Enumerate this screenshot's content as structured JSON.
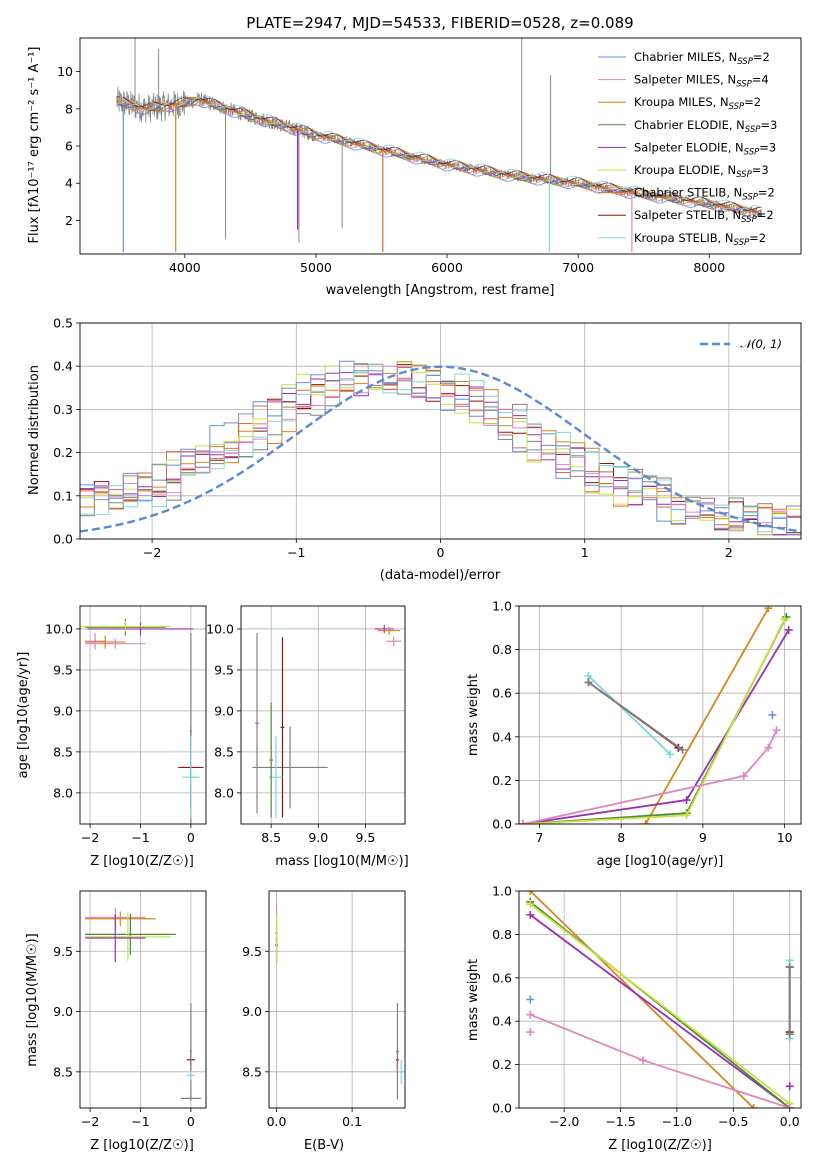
{
  "colors": {
    "data": "#808080",
    "chabrier_miles": "#6d8ed8",
    "salpeter_miles": "#e085c0",
    "kroupa_miles": "#d4861c",
    "chabrier_elodie": "#4c8a3a",
    "salpeter_elodie": "#9a2fb4",
    "kroupa_elodie": "#c8e040",
    "chabrier_stelib": "#e06840",
    "salpeter_stelib": "#8c1414",
    "kroupa_stelib": "#7ed8e0",
    "normal_curve": "#5a8ad6"
  },
  "chart_data": [
    {
      "id": "spectrum",
      "type": "line",
      "title": "PLATE=2947, MJD=54533, FIBERID=0528, z=0.089",
      "xlabel": "wavelength [Angstrom, rest frame]",
      "ylabel": "Flux [fλ10⁻¹⁷ erg cm⁻² s⁻¹ A⁻¹]",
      "xlim": [
        3200,
        8700
      ],
      "ylim": [
        0.2,
        11.8
      ],
      "xticks": [
        4000,
        5000,
        6000,
        7000,
        8000
      ],
      "yticks": [
        2,
        4,
        6,
        8,
        10
      ],
      "legend_position": "top-right",
      "legend": [
        {
          "label": "Chabrier MILES, N",
          "sub": "SSP",
          "eq": "=2",
          "color": "#6d8ed8"
        },
        {
          "label": "Salpeter MILES, N",
          "sub": "SSP",
          "eq": "=4",
          "color": "#e085c0"
        },
        {
          "label": "Kroupa MILES, N",
          "sub": "SSP",
          "eq": "=2",
          "color": "#d4861c"
        },
        {
          "label": "Chabrier ELODIE, N",
          "sub": "SSP",
          "eq": "=3",
          "color": "#4c8a3a"
        },
        {
          "label": "Salpeter ELODIE, N",
          "sub": "SSP",
          "eq": "=3",
          "color": "#9a2fb4"
        },
        {
          "label": "Kroupa ELODIE, N",
          "sub": "SSP",
          "eq": "=3",
          "color": "#c8e040"
        },
        {
          "label": "Chabrier STELIB, N",
          "sub": "SSP",
          "eq": "=2",
          "color": "#e06840"
        },
        {
          "label": "Salpeter STELIB, N",
          "sub": "SSP",
          "eq": "=2",
          "color": "#8c1414"
        },
        {
          "label": "Kroupa STELIB, N",
          "sub": "SSP",
          "eq": "=2",
          "color": "#7ed8e0"
        }
      ],
      "continuum": [
        [
          3480,
          8.4
        ],
        [
          3700,
          8.0
        ],
        [
          4000,
          8.3
        ],
        [
          4100,
          8.5
        ],
        [
          4500,
          7.6
        ],
        [
          5000,
          6.6
        ],
        [
          5500,
          5.8
        ],
        [
          6000,
          5.0
        ],
        [
          6500,
          4.4
        ],
        [
          7000,
          4.0
        ],
        [
          7500,
          3.4
        ],
        [
          8000,
          2.9
        ],
        [
          8400,
          2.4
        ]
      ],
      "data_spikes": [
        [
          3620,
          11.8
        ],
        [
          3800,
          11.2
        ],
        [
          4310,
          1.0
        ],
        [
          4870,
          0.8
        ],
        [
          5200,
          1.6
        ],
        [
          6570,
          11.8
        ],
        [
          6790,
          9.8
        ]
      ],
      "model_dips": [
        [
          3530,
          0.3
        ],
        [
          3930,
          0.3
        ],
        [
          4860,
          1.5
        ],
        [
          5510,
          0.3
        ],
        [
          6780,
          0.3
        ],
        [
          7410,
          0.3
        ]
      ]
    },
    {
      "id": "residuals",
      "type": "line",
      "xlabel": "(data-model)/error",
      "ylabel": "Normed distribution",
      "xlim": [
        -2.5,
        2.5
      ],
      "ylim": [
        0.0,
        0.5
      ],
      "xticks": [
        -2,
        -1,
        0,
        1,
        2
      ],
      "yticks": [
        0.0,
        0.1,
        0.2,
        0.3,
        0.4,
        0.5
      ],
      "legend_position": "top-right",
      "legend": [
        {
          "label": "𝒩(0, 1)",
          "color": "#5a8ad6",
          "style": "dashed"
        }
      ],
      "normal_mu": 0,
      "normal_sigma": 1,
      "hist_bin_width": 0.1,
      "hist_envelope": [
        [
          -2.5,
          0.09
        ],
        [
          -2.0,
          0.12
        ],
        [
          -1.5,
          0.22
        ],
        [
          -1.0,
          0.33
        ],
        [
          -0.5,
          0.38
        ],
        [
          0.0,
          0.35
        ],
        [
          0.5,
          0.26
        ],
        [
          1.0,
          0.16
        ],
        [
          1.5,
          0.09
        ],
        [
          2.0,
          0.05
        ],
        [
          2.5,
          0.03
        ]
      ]
    },
    {
      "id": "age_vs_Z",
      "type": "scatter",
      "xlabel": "Z [log10(Z/Z☉)]",
      "ylabel": "age [log10(age/yr)]",
      "xlim": [
        -2.2,
        0.3
      ],
      "ylim": [
        7.62,
        10.28
      ],
      "xticks": [
        -2,
        -1,
        0
      ],
      "yticks": [
        8.0,
        8.5,
        9.0,
        9.5,
        10.0
      ],
      "points": [
        {
          "x": -1.3,
          "y": 10.02,
          "xerr": 0.8,
          "yerr": 0.1,
          "color": "#4c8a3a"
        },
        {
          "x": -1.0,
          "y": 10.0,
          "xerr": 1.05,
          "yerr": 0.08,
          "color": "#9a2fb4"
        },
        {
          "x": -1.3,
          "y": 10.03,
          "xerr": 0.9,
          "yerr": 0.07,
          "color": "#c8e040"
        },
        {
          "x": -1.9,
          "y": 9.85,
          "xerr": 0.2,
          "yerr": 0.1,
          "color": "#e085c0"
        },
        {
          "x": -1.5,
          "y": 9.82,
          "xerr": 0.6,
          "yerr": 0.06,
          "color": "#e085c0"
        },
        {
          "x": -1.7,
          "y": 9.84,
          "xerr": 0.4,
          "yerr": 0.08,
          "color": "#d4861c"
        },
        {
          "x": 0.0,
          "y": 8.31,
          "xerr": 0.25,
          "yerr": 0.5,
          "color": "#8c1414"
        },
        {
          "x": 0.0,
          "y": 8.75,
          "xerr": 0.02,
          "yerr": 1.2,
          "color": "#808080"
        },
        {
          "x": 0.0,
          "y": 8.19,
          "xerr": 0.17,
          "yerr": 0.5,
          "color": "#7ed8e0"
        }
      ]
    },
    {
      "id": "age_vs_mass",
      "type": "scatter",
      "xlabel": "mass [log10(M/M☉)]",
      "ylabel": "",
      "xlim": [
        8.18,
        9.92
      ],
      "ylim": [
        7.62,
        10.28
      ],
      "xticks": [
        8.5,
        9.0,
        9.5
      ],
      "yticks": [
        8.0,
        8.5,
        9.0,
        9.5,
        10.0
      ],
      "points": [
        {
          "x": 9.7,
          "y": 10.0,
          "xerr": 0.1,
          "yerr": 0.05,
          "color": "#9a2fb4"
        },
        {
          "x": 9.8,
          "y": 9.85,
          "xerr": 0.08,
          "yerr": 0.06,
          "color": "#e085c0"
        },
        {
          "x": 9.75,
          "y": 9.98,
          "xerr": 0.12,
          "yerr": 0.05,
          "color": "#d4861c"
        },
        {
          "x": 8.7,
          "y": 8.31,
          "xerr": 0.4,
          "yerr": 0.5,
          "color": "#808080"
        },
        {
          "x": 8.35,
          "y": 8.85,
          "xerr": 0.02,
          "yerr": 1.1,
          "color": "#808080"
        },
        {
          "x": 8.62,
          "y": 8.8,
          "xerr": 0.02,
          "yerr": 1.1,
          "color": "#8c1414"
        },
        {
          "x": 8.55,
          "y": 8.19,
          "xerr": 0.07,
          "yerr": 0.5,
          "color": "#7ed8e0"
        },
        {
          "x": 8.5,
          "y": 8.4,
          "xerr": 0.02,
          "yerr": 0.7,
          "color": "#4c8a3a"
        }
      ]
    },
    {
      "id": "mass_weight_vs_age",
      "type": "line",
      "xlabel": "age [log10(age/yr)]",
      "ylabel": "mass weight",
      "xlim": [
        6.75,
        10.2
      ],
      "ylim": [
        0.0,
        1.0
      ],
      "xticks": [
        7,
        8,
        9,
        10
      ],
      "yticks": [
        0.0,
        0.2,
        0.4,
        0.6,
        0.8,
        1.0
      ],
      "series": [
        {
          "color": "#d4861c",
          "x": [
            8.3,
            9.8
          ],
          "y": [
            0.0,
            0.99
          ]
        },
        {
          "color": "#9a2fb4",
          "x": [
            6.8,
            8.8,
            10.05
          ],
          "y": [
            0.0,
            0.11,
            0.89
          ]
        },
        {
          "color": "#4c8a3a",
          "x": [
            6.8,
            8.8,
            10.02
          ],
          "y": [
            0.0,
            0.05,
            0.95
          ]
        },
        {
          "color": "#c8e040",
          "x": [
            6.8,
            8.8,
            10.0
          ],
          "y": [
            0.0,
            0.04,
            0.94
          ]
        },
        {
          "color": "#e085c0",
          "x": [
            6.8,
            9.5,
            9.8,
            9.9
          ],
          "y": [
            0.0,
            0.22,
            0.35,
            0.43
          ]
        },
        {
          "color": "#7ed8e0",
          "x": [
            7.6,
            8.6
          ],
          "y": [
            0.68,
            0.32
          ]
        },
        {
          "color": "#8c1414",
          "x": [
            7.6,
            8.7
          ],
          "y": [
            0.65,
            0.35
          ]
        },
        {
          "color": "#808080",
          "x": [
            7.6,
            8.75
          ],
          "y": [
            0.65,
            0.34
          ]
        },
        {
          "color": "#6d8ed8",
          "x": [
            9.85
          ],
          "y": [
            0.5
          ]
        }
      ]
    },
    {
      "id": "mass_vs_Z",
      "type": "scatter",
      "xlabel": "Z [log10(Z/Z☉)]",
      "ylabel": "mass [log10(M/M☉)]",
      "xlim": [
        -2.2,
        0.3
      ],
      "ylim": [
        8.2,
        10.0
      ],
      "xticks": [
        -2,
        -1,
        0
      ],
      "yticks": [
        8.5,
        9.0,
        9.5
      ],
      "points": [
        {
          "x": -1.5,
          "y": 9.78,
          "xerr": 0.6,
          "yerr": 0.08,
          "color": "#e085c0"
        },
        {
          "x": -1.4,
          "y": 9.77,
          "xerr": 0.7,
          "yerr": 0.06,
          "color": "#d4861c"
        },
        {
          "x": -1.2,
          "y": 9.64,
          "xerr": 0.9,
          "yerr": 0.17,
          "color": "#4c8a3a"
        },
        {
          "x": -1.25,
          "y": 9.62,
          "xerr": 0.85,
          "yerr": 0.2,
          "color": "#c8e040"
        },
        {
          "x": -1.5,
          "y": 9.61,
          "xerr": 0.6,
          "yerr": 0.2,
          "color": "#9a2fb4"
        },
        {
          "x": 0.0,
          "y": 8.6,
          "xerr": 0.08,
          "yerr": 0.1,
          "color": "#8c1414"
        },
        {
          "x": 0.0,
          "y": 8.67,
          "xerr": 0.02,
          "yerr": 0.4,
          "color": "#808080"
        },
        {
          "x": 0.0,
          "y": 8.28,
          "xerr": 0.2,
          "yerr": 0.02,
          "color": "#808080"
        },
        {
          "x": 0.0,
          "y": 8.47,
          "xerr": 0.08,
          "yerr": 0.04,
          "color": "#7ed8e0"
        }
      ]
    },
    {
      "id": "mass_vs_ebv",
      "type": "scatter",
      "xlabel": "E(B-V)",
      "ylabel": "",
      "xlim": [
        -0.01,
        0.17
      ],
      "ylim": [
        8.2,
        10.0
      ],
      "xticks": [
        0.0,
        0.1
      ],
      "yticks": [
        8.5,
        9.0,
        9.5
      ],
      "points": [
        {
          "x": 0.0,
          "y": 9.65,
          "xerr": 0.002,
          "yerr": 0.25,
          "color": "#e085c0"
        },
        {
          "x": 0.0,
          "y": 9.55,
          "xerr": 0.002,
          "yerr": 0.15,
          "color": "#9a2fb4"
        },
        {
          "x": 0.0,
          "y": 9.6,
          "xerr": 0.002,
          "yerr": 0.2,
          "color": "#c8e040"
        },
        {
          "x": 0.16,
          "y": 8.6,
          "xerr": 0.002,
          "yerr": 0.1,
          "color": "#8c1414"
        },
        {
          "x": 0.16,
          "y": 8.67,
          "xerr": 0.002,
          "yerr": 0.4,
          "color": "#808080"
        },
        {
          "x": 0.165,
          "y": 8.5,
          "xerr": 0.002,
          "yerr": 0.1,
          "color": "#7ed8e0"
        }
      ]
    },
    {
      "id": "mass_weight_vs_Z",
      "type": "line",
      "xlabel": "Z [log10(Z/Z☉)]",
      "ylabel": "mass weight",
      "xlim": [
        -2.4,
        0.1
      ],
      "ylim": [
        0.0,
        1.0
      ],
      "xticks": [
        -2.0,
        -1.5,
        -1.0,
        -0.5,
        0.0
      ],
      "yticks": [
        0.0,
        0.2,
        0.4,
        0.6,
        0.8,
        1.0
      ],
      "series": [
        {
          "color": "#d4861c",
          "x": [
            -2.3,
            -0.32
          ],
          "y": [
            1.0,
            0.0
          ]
        },
        {
          "color": "#9a2fb4",
          "x": [
            -2.3,
            0.0
          ],
          "y": [
            0.89,
            0.0
          ]
        },
        {
          "color": "#4c8a3a",
          "x": [
            -2.3,
            0.0
          ],
          "y": [
            0.95,
            0.0
          ]
        },
        {
          "color": "#c8e040",
          "x": [
            -2.3,
            0.0
          ],
          "y": [
            0.94,
            0.02
          ]
        },
        {
          "color": "#e085c0",
          "x": [
            -2.3,
            -1.3,
            0.0
          ],
          "y": [
            0.43,
            0.22,
            0.0
          ]
        },
        {
          "color": "#7ed8e0",
          "x": [
            0.0,
            0.0
          ],
          "y": [
            0.32,
            0.68
          ]
        },
        {
          "color": "#8c1414",
          "x": [
            0.0,
            0.0
          ],
          "y": [
            0.35,
            0.65
          ]
        },
        {
          "color": "#808080",
          "x": [
            0.0,
            0.0
          ],
          "y": [
            0.34,
            0.65
          ]
        },
        {
          "color": "#9a2fb4",
          "x": [
            0.0
          ],
          "y": [
            0.1
          ]
        },
        {
          "color": "#6d8ed8",
          "x": [
            -2.3
          ],
          "y": [
            0.5
          ]
        },
        {
          "color": "#e085c0",
          "x": [
            -2.3
          ],
          "y": [
            0.35
          ]
        }
      ]
    }
  ]
}
